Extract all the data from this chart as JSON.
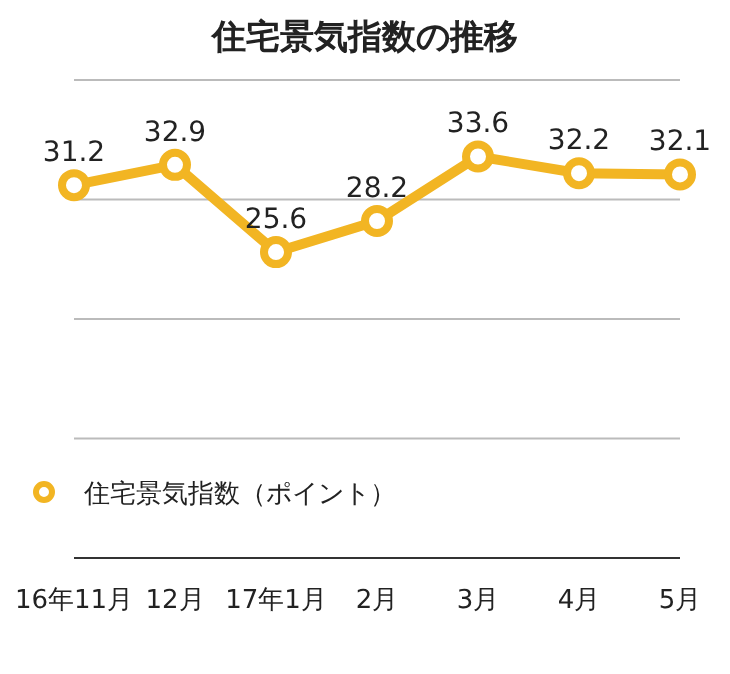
{
  "chart_data": {
    "type": "line",
    "title": "住宅景気指数の推移",
    "categories": [
      "16年11月",
      "12月",
      "17年1月",
      "2月",
      "3月",
      "4月",
      "5月"
    ],
    "series": [
      {
        "name": "住宅景気指数（ポイント）",
        "color": "#f2b523",
        "values": [
          31.2,
          32.9,
          25.6,
          28.2,
          33.6,
          32.2,
          32.1
        ]
      }
    ],
    "ylim": [
      0,
      40
    ],
    "yticks": [
      {
        "value": 10,
        "label": null
      },
      {
        "value": 20,
        "label": null
      },
      {
        "value": 30,
        "label": null
      },
      {
        "value": 40,
        "label": null
      }
    ],
    "tick_labels": "x",
    "data_labels": true,
    "grid": "y",
    "legend": "bottom",
    "marker": "circle",
    "line_style": "solid"
  }
}
